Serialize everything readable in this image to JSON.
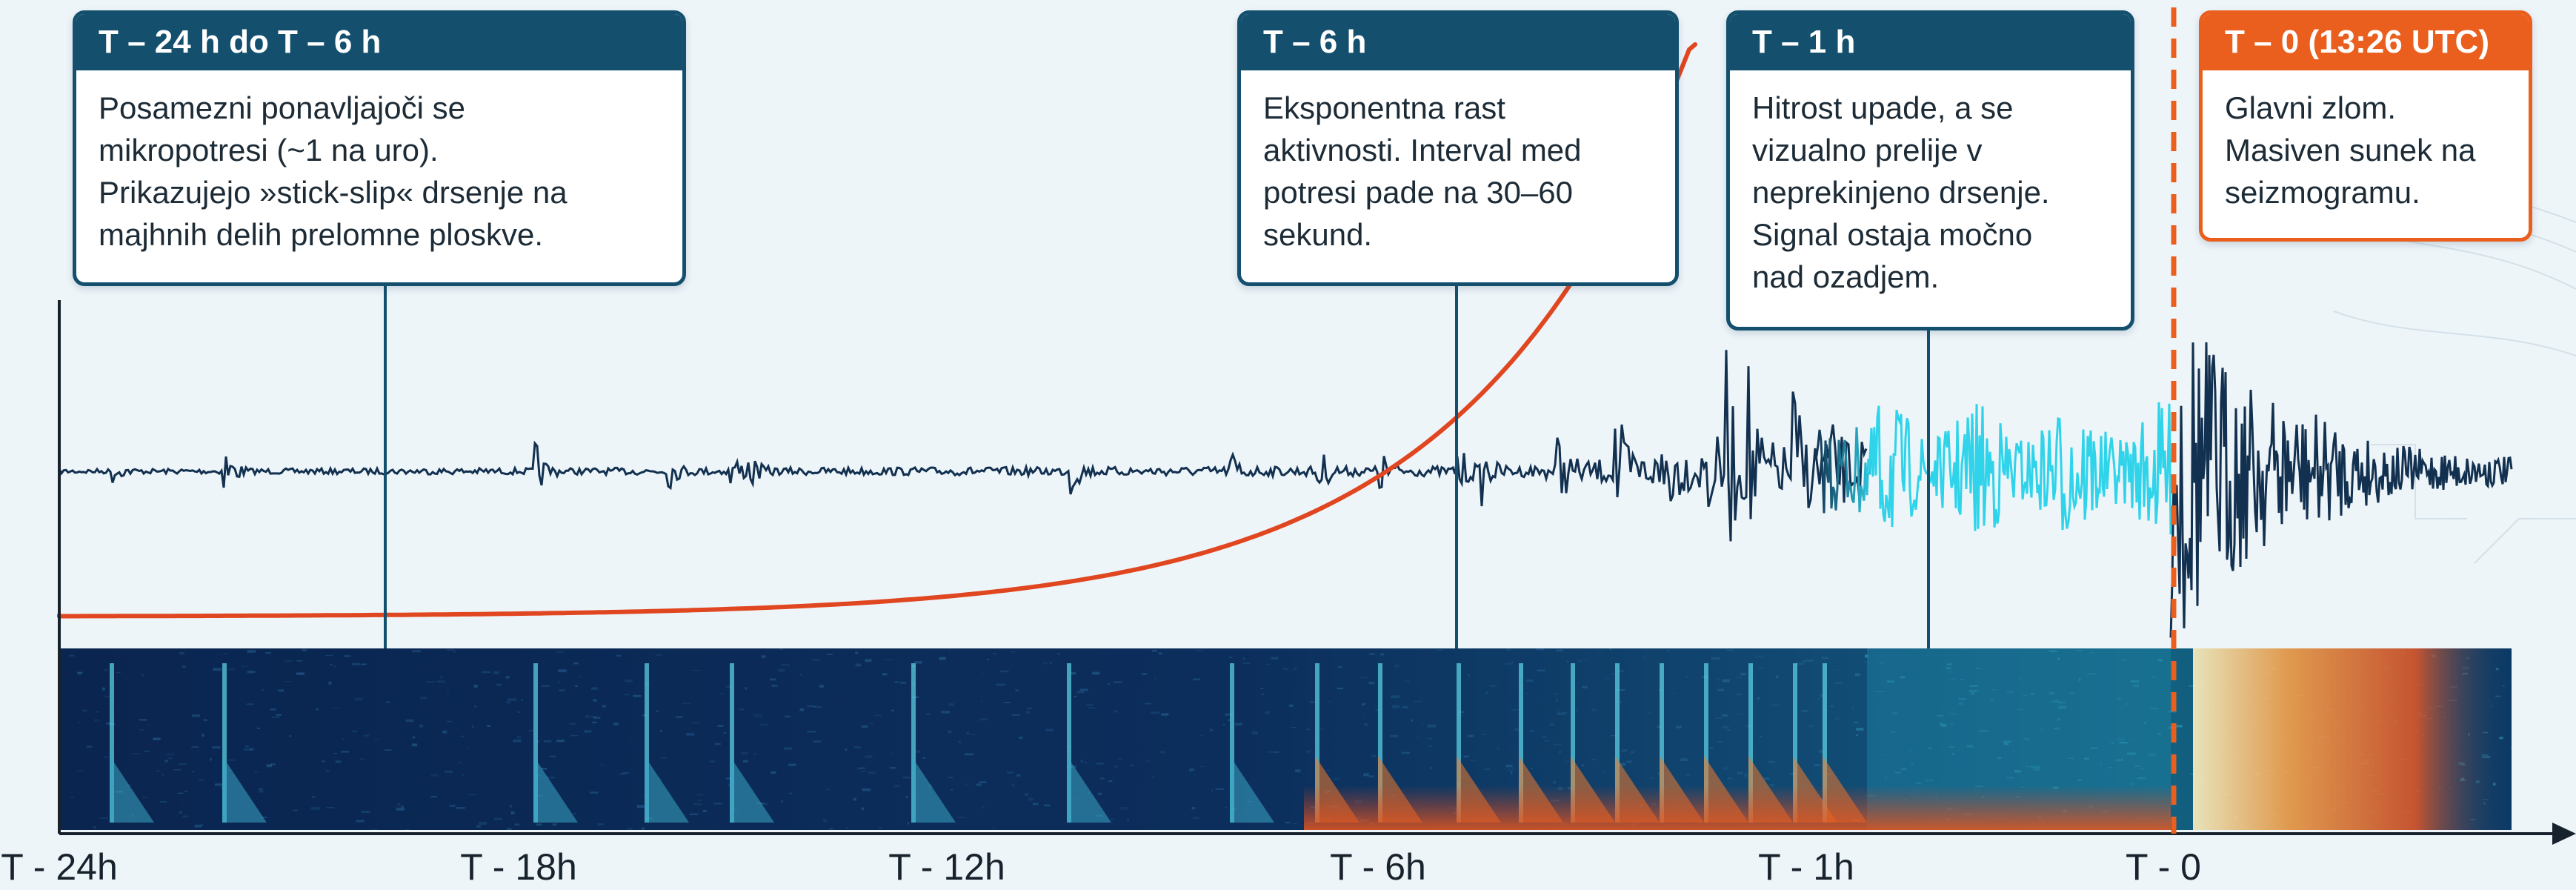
{
  "callouts": [
    {
      "title": "T – 24 h do T – 6 h",
      "lines": [
        "Posamezni ponavljajoči se",
        "mikropotresi (~1 na uro).",
        "Prikazujejo »stick-slip« drsenje na",
        "majhnih delih prelomne ploskve."
      ]
    },
    {
      "title": "T – 6 h",
      "lines": [
        "Eksponentna rast",
        "aktivnosti. Interval med",
        "potresi pade na 30–60",
        "sekund."
      ]
    },
    {
      "title": "T – 1 h",
      "lines": [
        "Hitrost upade, a se",
        "vizualno prelije v",
        "neprekinjeno drsenje.",
        "Signal ostaja močno",
        "nad ozadjem."
      ]
    },
    {
      "title": "T – 0 (13:26 UTC)",
      "lines": [
        "Glavni zlom.",
        "Masiven sunek na",
        "seizmogramu."
      ]
    }
  ],
  "time_axis": {
    "ticks": [
      "T - 24h",
      "T - 18h",
      "T - 12h",
      "T - 6h",
      "T - 1h",
      "T - 0"
    ]
  },
  "colors": {
    "waveform": "#12304f",
    "continuous_slip": "#2fd3ea",
    "rate_curve": "#e0461f",
    "box_header": "#14506e",
    "mainshock_accent": "#ea5f1d",
    "spectrogram_background": "#0b2a57"
  }
}
